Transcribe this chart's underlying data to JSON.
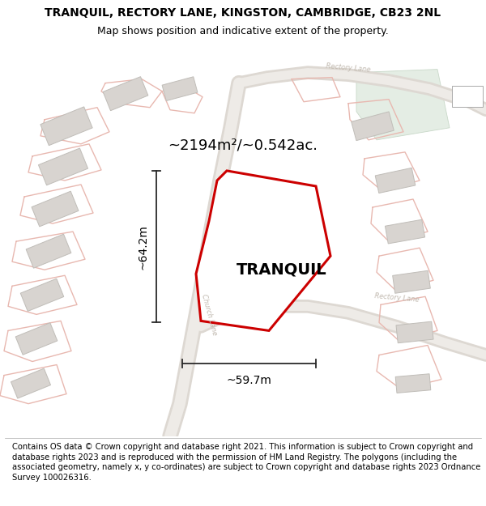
{
  "title_line1": "TRANQUIL, RECTORY LANE, KINGSTON, CAMBRIDGE, CB23 2NL",
  "title_line2": "Map shows position and indicative extent of the property.",
  "property_label": "TRANQUIL",
  "area_text": "~2194m²/~0.542ac.",
  "width_label": "~59.7m",
  "height_label": "~64.2m",
  "footer_text": "Contains OS data © Crown copyright and database right 2021. This information is subject to Crown copyright and database rights 2023 and is reproduced with the permission of HM Land Registry. The polygons (including the associated geometry, namely x, y co-ordinates) are subject to Crown copyright and database rights 2023 Ordnance Survey 100026316.",
  "map_bg": "#f9f9f7",
  "building_fill": "#d8d4d0",
  "building_edge": "#c0bdb8",
  "property_fill": "#ffffff",
  "property_edge": "#cc0000",
  "road_fill": "#ede8e4",
  "road_edge": "#e0d8d2",
  "pink_line": "#e8b8b0",
  "green_area": "#e4ede4",
  "street_label_color": "#c0b8ae",
  "dim_line_color": "#2a2a2a",
  "title_fontsize": 10,
  "subtitle_fontsize": 9,
  "footer_fontsize": 7.2,
  "property_label_fontsize": 14,
  "area_fontsize": 13,
  "dim_fontsize": 10
}
